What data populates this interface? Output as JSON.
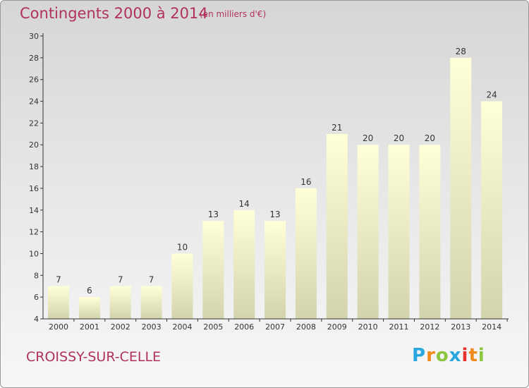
{
  "header": {
    "title": "Contingents 2000 à 2014",
    "subtitle": "(en milliers d'€)"
  },
  "footer": {
    "place": "CROISSY-SUR-CELLE",
    "logo": {
      "text": "Proxiti",
      "letters": [
        {
          "ch": "P",
          "color": "#2aa6df"
        },
        {
          "ch": "r",
          "color": "#f08a1c"
        },
        {
          "ch": "o",
          "color": "#8cc63f"
        },
        {
          "ch": "x",
          "color": "#2aa6df"
        },
        {
          "ch": "i",
          "color": "#e8312f"
        },
        {
          "ch": "t",
          "color": "#f08a1c"
        },
        {
          "ch": "i",
          "color": "#8cc63f"
        }
      ]
    }
  },
  "colors": {
    "title": "#b0325a",
    "bar_top": "#ffffd8",
    "bar_bottom": "#d3d3ad",
    "axis": "#333333"
  },
  "chart_data": {
    "type": "bar",
    "title": "Contingents 2000 à 2014",
    "subtitle": "(en milliers d'€)",
    "xlabel": "",
    "ylabel": "",
    "categories": [
      "2000",
      "2001",
      "2002",
      "2003",
      "2004",
      "2005",
      "2006",
      "2007",
      "2008",
      "2009",
      "2010",
      "2011",
      "2012",
      "2013",
      "2014"
    ],
    "values": [
      7,
      6,
      7,
      7,
      10,
      13,
      14,
      13,
      16,
      21,
      20,
      20,
      20,
      28,
      24
    ],
    "ylim": [
      4,
      30
    ],
    "yticks": [
      4,
      6,
      8,
      10,
      12,
      14,
      16,
      18,
      20,
      22,
      24,
      26,
      28,
      30
    ],
    "grid": false,
    "legend": "none"
  }
}
